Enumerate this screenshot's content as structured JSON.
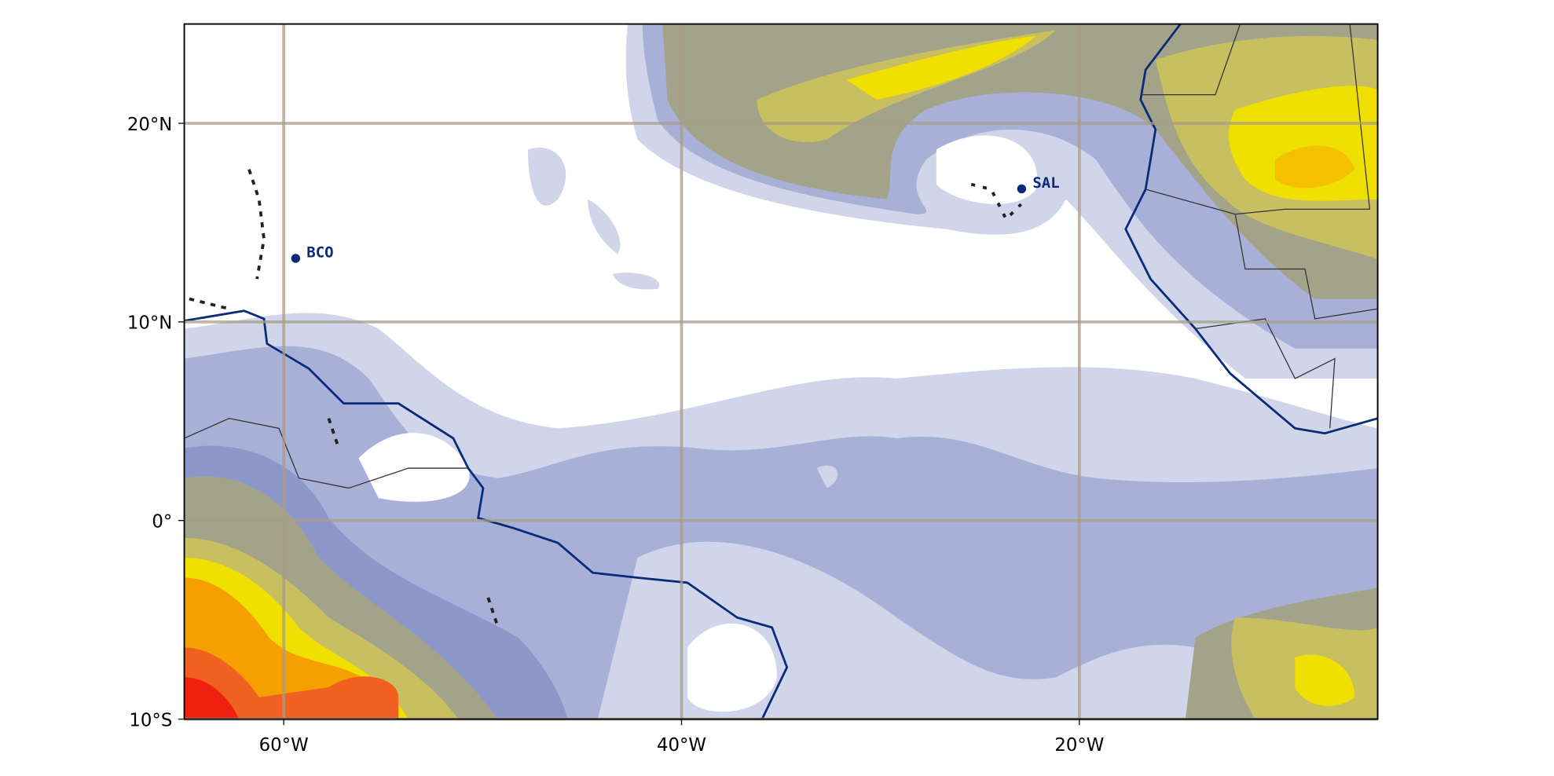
{
  "map": {
    "xlim": [
      -65,
      -5
    ],
    "ylim": [
      -10,
      25
    ],
    "xticks": [
      {
        "value": -60,
        "label": "60°W"
      },
      {
        "value": -40,
        "label": "40°W"
      },
      {
        "value": -20,
        "label": "20°W"
      }
    ],
    "yticks": [
      {
        "value": -10,
        "label": "10°S"
      },
      {
        "value": 0,
        "label": "0°"
      },
      {
        "value": 10,
        "label": "10°N"
      },
      {
        "value": 20,
        "label": "20°N"
      }
    ],
    "stations": [
      {
        "name": "BCO",
        "lon": -59.4,
        "lat": 13.2
      },
      {
        "name": "SAL",
        "lon": -22.9,
        "lat": 16.7
      }
    ]
  }
}
